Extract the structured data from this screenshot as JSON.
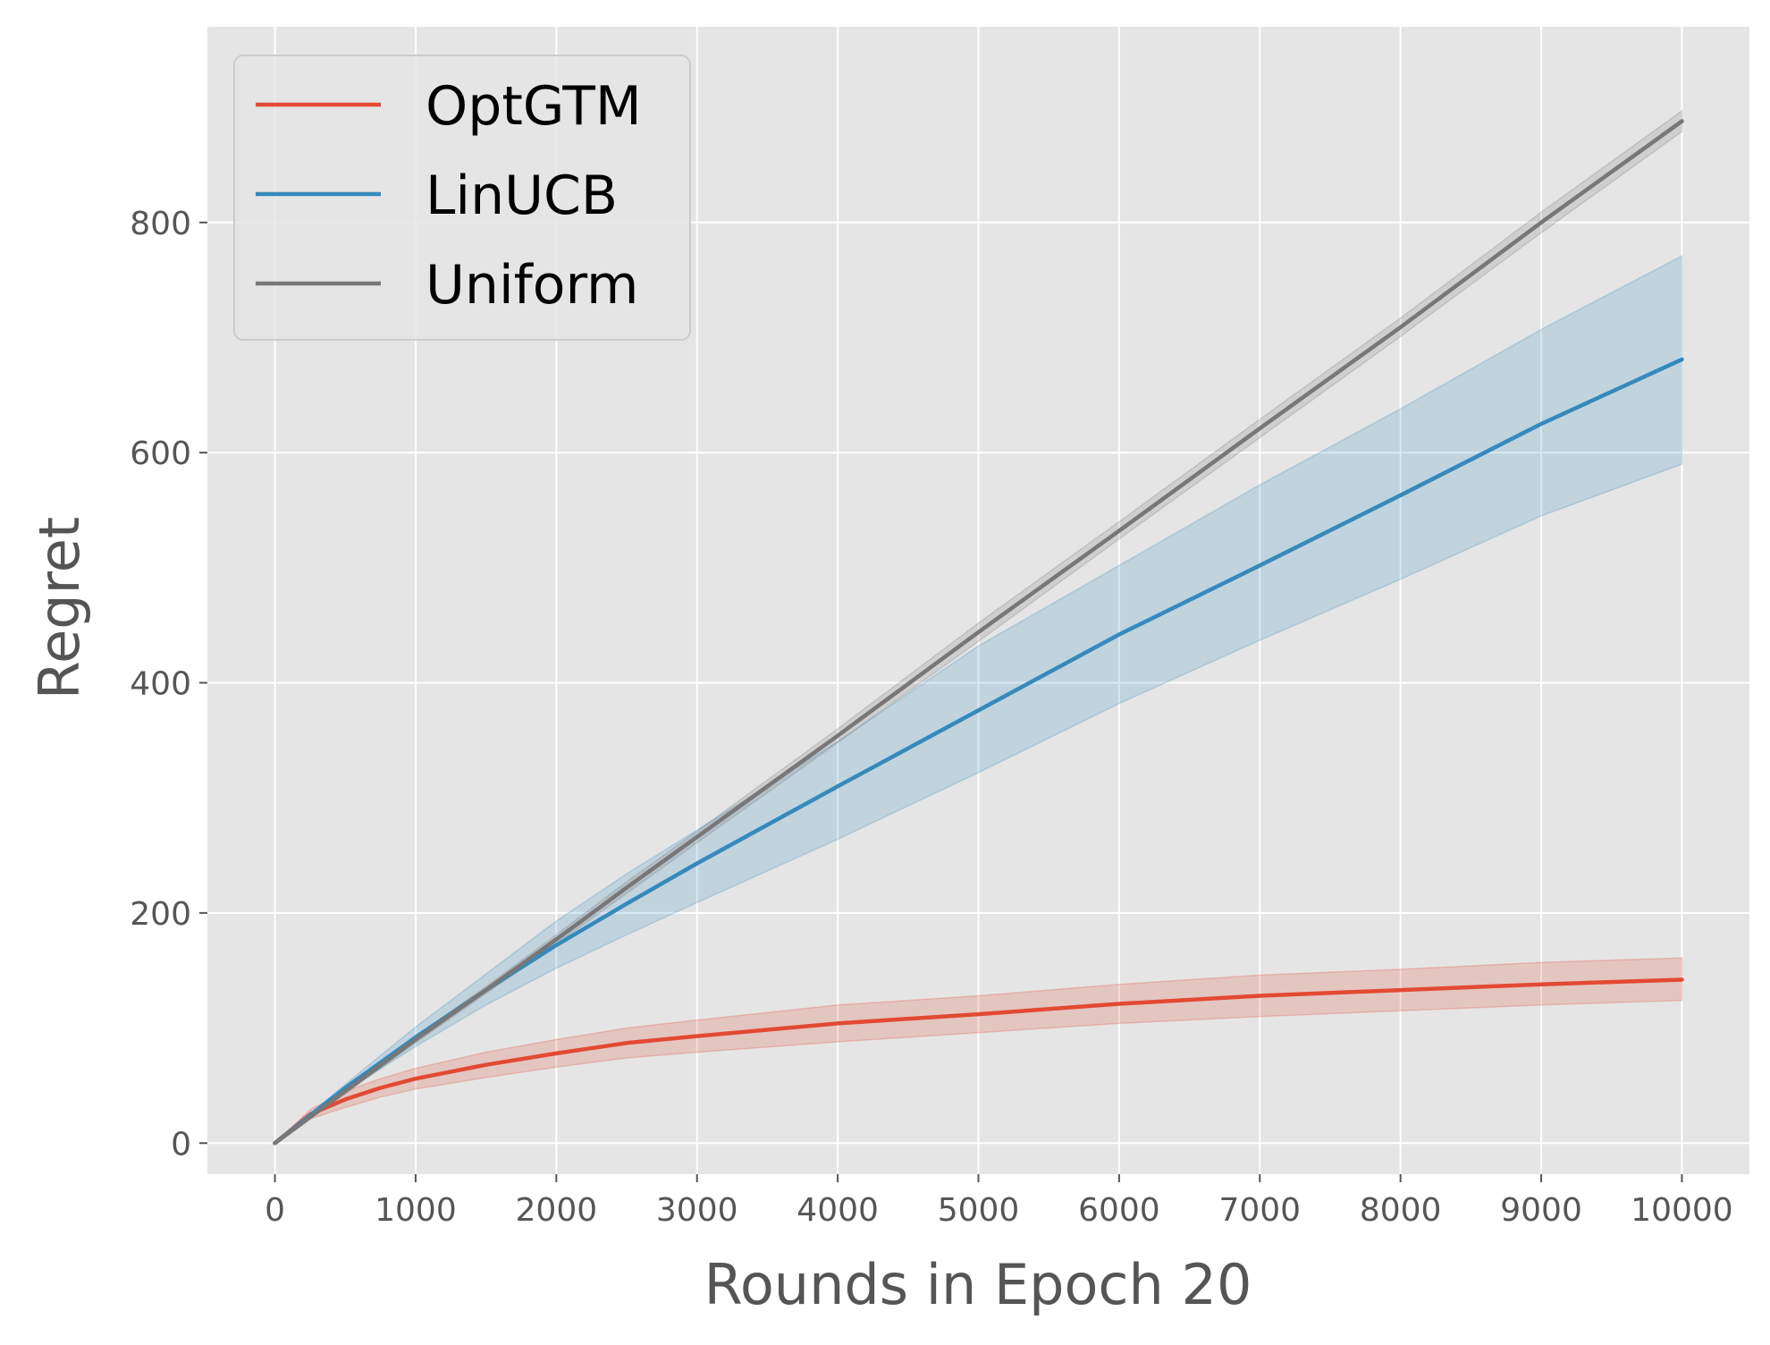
{
  "chart_data": {
    "type": "line",
    "title": "",
    "xlabel": "Rounds in Epoch 20",
    "ylabel": "Regret",
    "xlim": [
      -480,
      10480
    ],
    "ylim": [
      -27,
      970
    ],
    "xticks": [
      0,
      1000,
      2000,
      3000,
      4000,
      5000,
      6000,
      7000,
      8000,
      9000,
      10000
    ],
    "yticks": [
      0,
      200,
      400,
      600,
      800
    ],
    "grid": true,
    "legend_position": "top-left",
    "band": "shaded uncertainty band around each series",
    "series": [
      {
        "name": "OptGTM",
        "color": "#E24A33",
        "x": [
          0,
          250,
          500,
          750,
          1000,
          1500,
          2000,
          2500,
          3000,
          4000,
          5000,
          6000,
          7000,
          8000,
          9000,
          10000
        ],
        "y": [
          0,
          25,
          38,
          48,
          56,
          68,
          78,
          87,
          93,
          104,
          112,
          121,
          128,
          133,
          138,
          142
        ],
        "lower": [
          0,
          21,
          31,
          40,
          47,
          57,
          66,
          74,
          79,
          88,
          96,
          104,
          110,
          115,
          120,
          124
        ],
        "upper": [
          0,
          29,
          45,
          56,
          65,
          79,
          90,
          100,
          107,
          120,
          128,
          138,
          146,
          151,
          157,
          161
        ]
      },
      {
        "name": "LinUCB",
        "color": "#348ABD",
        "x": [
          0,
          500,
          1000,
          1500,
          2000,
          2500,
          3000,
          4000,
          5000,
          6000,
          7000,
          8000,
          9000,
          10000
        ],
        "y": [
          0,
          48,
          92,
          133,
          172,
          208,
          243,
          310,
          376,
          442,
          502,
          563,
          625,
          681
        ],
        "lower": [
          0,
          45,
          84,
          120,
          152,
          181,
          209,
          264,
          322,
          382,
          437,
          490,
          545,
          590
        ],
        "upper": [
          0,
          51,
          101,
          147,
          193,
          234,
          272,
          349,
          432,
          502,
          572,
          638,
          707,
          771
        ]
      },
      {
        "name": "Uniform",
        "color": "#777777",
        "x": [
          0,
          500,
          1000,
          1500,
          2000,
          2500,
          3000,
          4000,
          5000,
          6000,
          7000,
          8000,
          9000,
          10000
        ],
        "y": [
          0,
          45,
          90,
          133,
          177,
          222,
          266,
          354,
          444,
          532,
          621,
          709,
          800,
          888
        ],
        "lower": [
          0,
          43,
          87,
          130,
          173,
          217,
          261,
          348,
          436,
          525,
          613,
          701,
          791,
          879
        ],
        "upper": [
          0,
          47,
          93,
          136,
          181,
          227,
          271,
          360,
          452,
          540,
          629,
          717,
          809,
          897
        ]
      }
    ]
  }
}
